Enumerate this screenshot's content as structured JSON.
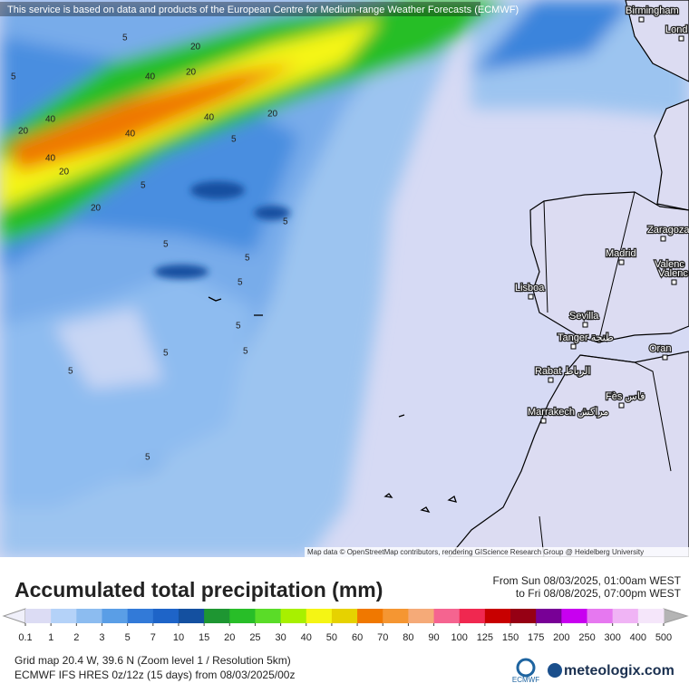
{
  "header": {
    "attribution": "This service is based on data and products of the European Centre for Medium-range Weather Forecasts (ECMWF)",
    "map_credit": "Map data © OpenStreetMap contributors, rendering GIScience Research Group @ Heidelberg University"
  },
  "map": {
    "cities": [
      "Birmingham",
      "Lond",
      "Zaragoza",
      "Madrid",
      "Valenc",
      "Valenc",
      "Lisboa",
      "Sevilla",
      "Tanger طنجة",
      "Oran",
      "Rabat الرباط",
      "Fès فاس",
      "Marrakech مراكش"
    ],
    "contour_labels": [
      "5",
      "20",
      "40",
      "20",
      "5",
      "40",
      "40",
      "20",
      "40",
      "20",
      "5",
      "40",
      "20",
      "5",
      "20",
      "5",
      "5",
      "5",
      "5",
      "5",
      "5",
      "5",
      "5",
      "5"
    ]
  },
  "legend": {
    "title": "Accumulated total precipitation (mm)",
    "period_from": "From Sun 08/03/2025, 01:00am WEST",
    "period_to": "to Fri 08/08/2025, 07:00pm WEST",
    "ticks": [
      0.1,
      1,
      2,
      3,
      5,
      7,
      10,
      15,
      20,
      25,
      30,
      40,
      50,
      60,
      70,
      80,
      90,
      100,
      125,
      150,
      175,
      200,
      250,
      300,
      400,
      500
    ],
    "colors": [
      "#dcdcf4",
      "#b4d2f8",
      "#8cbcf0",
      "#5a9ee6",
      "#327ad8",
      "#1e64c8",
      "#1450a0",
      "#1e9632",
      "#28be28",
      "#5adc28",
      "#a8f000",
      "#f5f514",
      "#e6d200",
      "#f07800",
      "#f59632",
      "#f5aa78",
      "#f56490",
      "#f02850",
      "#c80000",
      "#960014",
      "#780096",
      "#c800f0",
      "#e678f0",
      "#f0b4f5",
      "#f5e6fa"
    ],
    "under_color": "#f0f0fa",
    "over_color": "#b4b4b4"
  },
  "footer": {
    "grid_info": "Grid map 20.4 W, 39.6 N (Zoom level 1 / Resolution 5km)",
    "model_info": "ECMWF IFS HRES 0z/12z (15 days) from 08/03/2025/00z",
    "ecmwf": "ECMWF",
    "brand": "meteologix.com"
  }
}
